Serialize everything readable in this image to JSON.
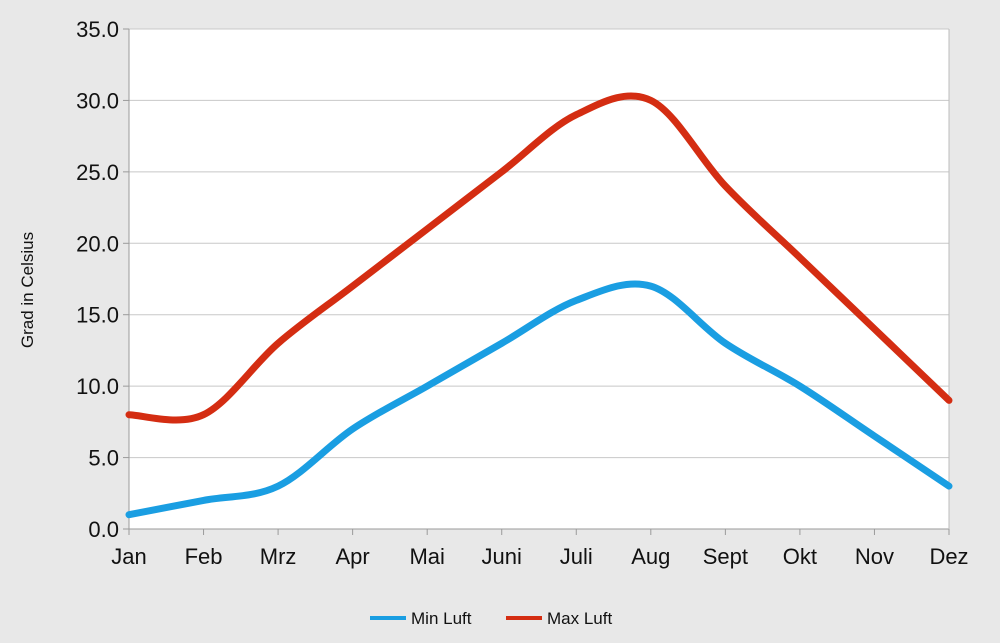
{
  "chart_data": {
    "type": "line",
    "categories": [
      "Jan",
      "Feb",
      "Mrz",
      "Apr",
      "Mai",
      "Juni",
      "Juli",
      "Aug",
      "Sept",
      "Okt",
      "Nov",
      "Dez"
    ],
    "series": [
      {
        "name": "Min Luft",
        "color": "#1a9ee2",
        "values": [
          1.0,
          2.0,
          3.0,
          7.0,
          10.0,
          13.0,
          16.0,
          17.0,
          13.0,
          10.0,
          6.5,
          3.0
        ]
      },
      {
        "name": "Max Luft",
        "color": "#d42d12",
        "values": [
          8.0,
          8.0,
          13.0,
          17.0,
          21.0,
          25.0,
          29.0,
          30.0,
          24.0,
          19.0,
          14.0,
          9.0
        ]
      }
    ],
    "yticks": [
      "0.0",
      "5.0",
      "10.0",
      "15.0",
      "20.0",
      "25.0",
      "30.0",
      "35.0"
    ],
    "ylim": [
      0,
      35
    ],
    "ylabel": "Grad in Celsius",
    "xlabel": "",
    "title": "",
    "grid": true,
    "legend": "bottom-center"
  }
}
